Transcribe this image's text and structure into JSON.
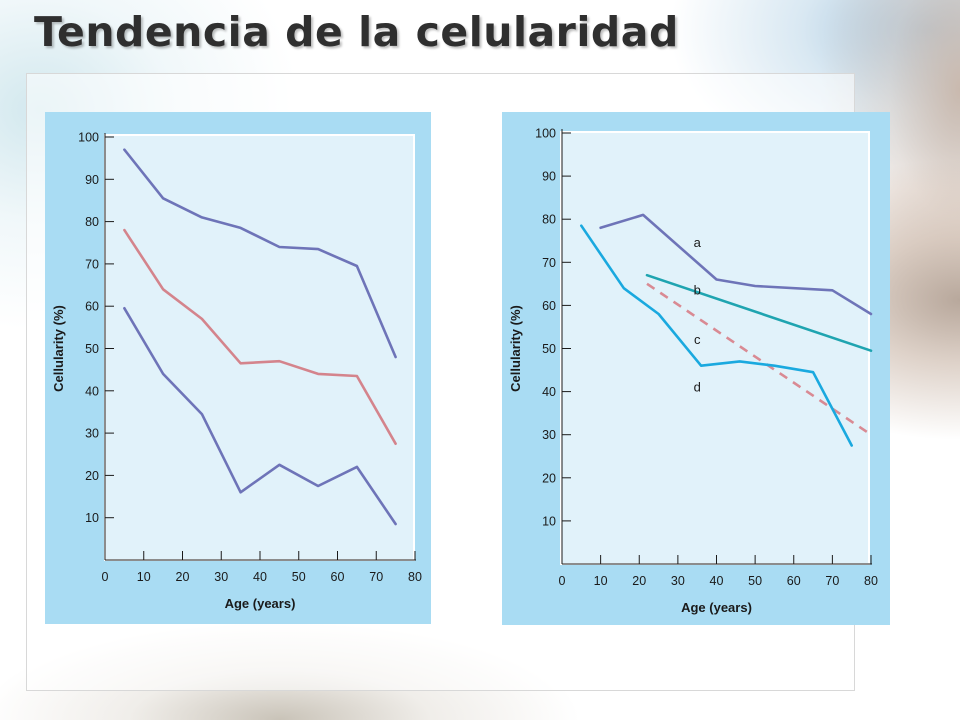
{
  "title": "Tendencia de la celularidad",
  "chart_data": [
    {
      "type": "line",
      "xlabel": "Age (years)",
      "ylabel": "Cellularity (%)",
      "xlim": [
        0,
        80
      ],
      "ylim": [
        0,
        100
      ],
      "x_ticks": [
        0,
        10,
        20,
        30,
        40,
        50,
        60,
        70,
        80
      ],
      "y_ticks": [
        10,
        20,
        30,
        40,
        50,
        60,
        70,
        80,
        90,
        100
      ],
      "series": [
        {
          "color": "#6e74b8",
          "dash": false,
          "x": [
            5,
            15,
            25,
            35,
            45,
            55,
            65,
            75
          ],
          "values": [
            97,
            85.5,
            81,
            78.5,
            74,
            73.5,
            69.5,
            48
          ]
        },
        {
          "color": "#d4848c",
          "dash": false,
          "x": [
            5,
            15,
            25,
            35,
            45,
            55,
            65,
            75
          ],
          "values": [
            78,
            64,
            57,
            46.5,
            47,
            44,
            43.5,
            27.5
          ]
        },
        {
          "color": "#6e74b8",
          "dash": false,
          "x": [
            5,
            15,
            25,
            35,
            45,
            55,
            65,
            75
          ],
          "values": [
            59.5,
            44,
            34.5,
            16,
            22.5,
            17.5,
            22,
            8.5
          ]
        }
      ]
    },
    {
      "type": "line",
      "xlabel": "Age (years)",
      "ylabel": "Cellularity (%)",
      "xlim": [
        0,
        80
      ],
      "ylim": [
        0,
        100
      ],
      "x_ticks": [
        0,
        10,
        20,
        30,
        40,
        50,
        60,
        70,
        80
      ],
      "y_ticks": [
        10,
        20,
        30,
        40,
        50,
        60,
        70,
        80,
        90,
        100
      ],
      "series": [
        {
          "name": "a",
          "color": "#6e74b8",
          "dash": false,
          "x": [
            10,
            21,
            40,
            50,
            70,
            80
          ],
          "values": [
            78,
            81,
            66,
            64.5,
            63.5,
            58
          ],
          "label_at": [
            35,
            73.5
          ]
        },
        {
          "name": "b",
          "color": "#1fa4b0",
          "dash": false,
          "x": [
            22,
            80
          ],
          "values": [
            67,
            49.5
          ],
          "label_at": [
            35,
            62.5
          ]
        },
        {
          "name": "c",
          "color": "#d98a93",
          "dash": true,
          "x": [
            22,
            80
          ],
          "values": [
            65,
            30
          ],
          "label_at": [
            35,
            51
          ]
        },
        {
          "name": "d",
          "color": "#1aa9df",
          "dash": false,
          "x": [
            5,
            16,
            25,
            36,
            46,
            55,
            65,
            75
          ],
          "values": [
            78.5,
            64,
            58,
            46,
            47,
            46,
            44.5,
            27.5
          ],
          "label_at": [
            35,
            40
          ]
        }
      ]
    }
  ]
}
